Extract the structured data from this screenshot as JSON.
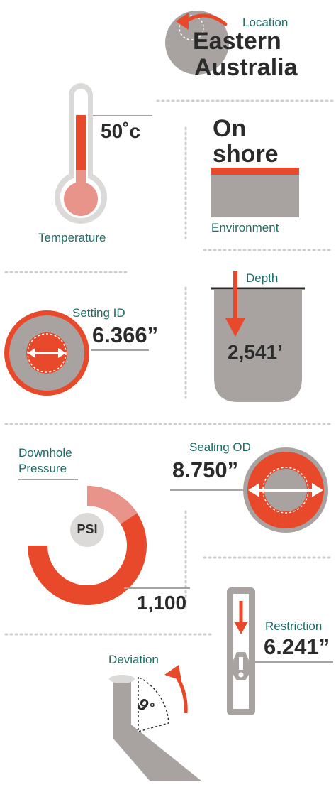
{
  "colors": {
    "orange": "#e8492a",
    "gray": "#a8a3a0",
    "light_gray": "#dcdad8",
    "dark": "#2b2b2b",
    "teal": "#1f6b66",
    "pink": "#e8948a",
    "dot": "#cfcfcf"
  },
  "location": {
    "label": "Location",
    "line1": "Eastern",
    "line2": "Australia",
    "icon": "undo-arrow-icon"
  },
  "temperature": {
    "label": "Temperature",
    "value": "50˚c",
    "icon": "thermometer-icon"
  },
  "environment": {
    "line1": "On",
    "line2": "shore",
    "label": "Environment",
    "icon": "ground-icon"
  },
  "depth": {
    "label": "Depth",
    "value": "2,541’",
    "icon": "depth-tank-icon"
  },
  "setting_id": {
    "label": "Setting ID",
    "value": "6.366”",
    "icon": "inner-diameter-icon"
  },
  "downhole_pressure": {
    "label_line1": "Downhole",
    "label_line2": "Pressure",
    "gauge_text": "PSI",
    "value": "1,100",
    "icon": "pressure-gauge-icon"
  },
  "sealing_od": {
    "label": "Sealing OD",
    "value": "8.750”",
    "icon": "outer-diameter-icon"
  },
  "restriction": {
    "label": "Restriction",
    "value": "6.241”",
    "icon": "restriction-pipe-icon"
  },
  "deviation": {
    "label": "Deviation",
    "value": "9˚",
    "icon": "deviation-pipe-icon"
  }
}
